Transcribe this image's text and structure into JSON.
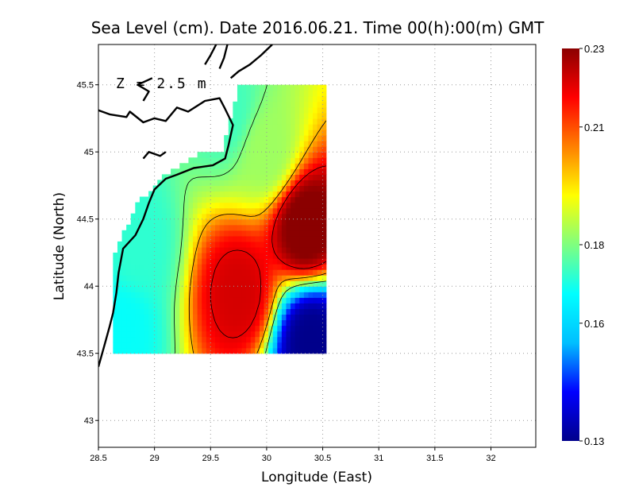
{
  "chart_data": {
    "type": "heatmap",
    "title": "Sea Level (cm). Date 2016.06.21. Time 00(h):00(m) GMT",
    "annotation": "Z = 2.5 m",
    "xlabel": "Longitude (East)",
    "ylabel": "Latitude (North)",
    "xlim": [
      28.5,
      32.4
    ],
    "ylim": [
      42.8,
      45.8
    ],
    "x_ticks": [
      "28.5",
      "29",
      "29.5",
      "30",
      "30.5",
      "31",
      "31.5",
      "32"
    ],
    "y_ticks": [
      "43",
      "43.5",
      "44",
      "44.5",
      "45",
      "45.5"
    ],
    "grid": true,
    "colorbar": {
      "min": 0.13,
      "max": 0.23,
      "ticks": [
        "0.23",
        "0.21",
        "0.18",
        "0.16",
        "0.13"
      ],
      "colormap": [
        "#00008b",
        "#0000ff",
        "#00bfff",
        "#00ffff",
        "#7fff7f",
        "#ffff00",
        "#ff8000",
        "#ff0000",
        "#8b0000"
      ]
    },
    "field_extent": {
      "lon": [
        28.63,
        30.53
      ],
      "lat": [
        43.5,
        45.5
      ]
    },
    "features": [
      {
        "name": "max",
        "lon": 30.35,
        "lat": 44.45,
        "value": 0.232
      },
      {
        "name": "secondary max",
        "lon": 29.75,
        "lat": 43.95,
        "value": 0.222
      },
      {
        "name": "min",
        "lon": 30.4,
        "lat": 43.6,
        "value": 0.13
      },
      {
        "name": "green band",
        "lon": 30.0,
        "lat": 45.0,
        "value": 0.183
      },
      {
        "name": "cyan west",
        "lon": 28.85,
        "lat": 44.3,
        "value": 0.172
      },
      {
        "name": "coastal cyan",
        "lon": 29.65,
        "lat": 45.3,
        "value": 0.174
      },
      {
        "name": "cyan sw",
        "lon": 28.7,
        "lat": 43.7,
        "value": 0.168
      }
    ],
    "colors": {
      "coast": "#000000",
      "grid": "#999999",
      "contour": "#000000"
    }
  }
}
